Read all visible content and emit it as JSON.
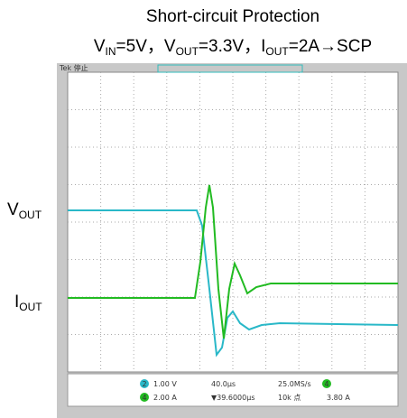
{
  "header": {
    "title": "Short-circuit Protection",
    "subtitle_parts": [
      "V",
      "IN",
      "=5V，V",
      "OUT",
      "=3.3V，I",
      "OUT",
      "=2A→SCP"
    ]
  },
  "labels": {
    "vout": [
      "V",
      "OUT"
    ],
    "iout": [
      "I",
      "OUT"
    ]
  },
  "scope": {
    "status": "Tek 停止",
    "readouts": {
      "ch2_scale": "1.00 V",
      "ch4_scale": "2.00 A",
      "timebase": "40.0µs",
      "sample_rate": "25.0MS/s",
      "trigger_pos": "▼39.6000µs",
      "record": "10k 点",
      "trigger_level": "3.80 A",
      "ch2": "2",
      "ch4": "4",
      "trig_ch": "4"
    }
  }
}
